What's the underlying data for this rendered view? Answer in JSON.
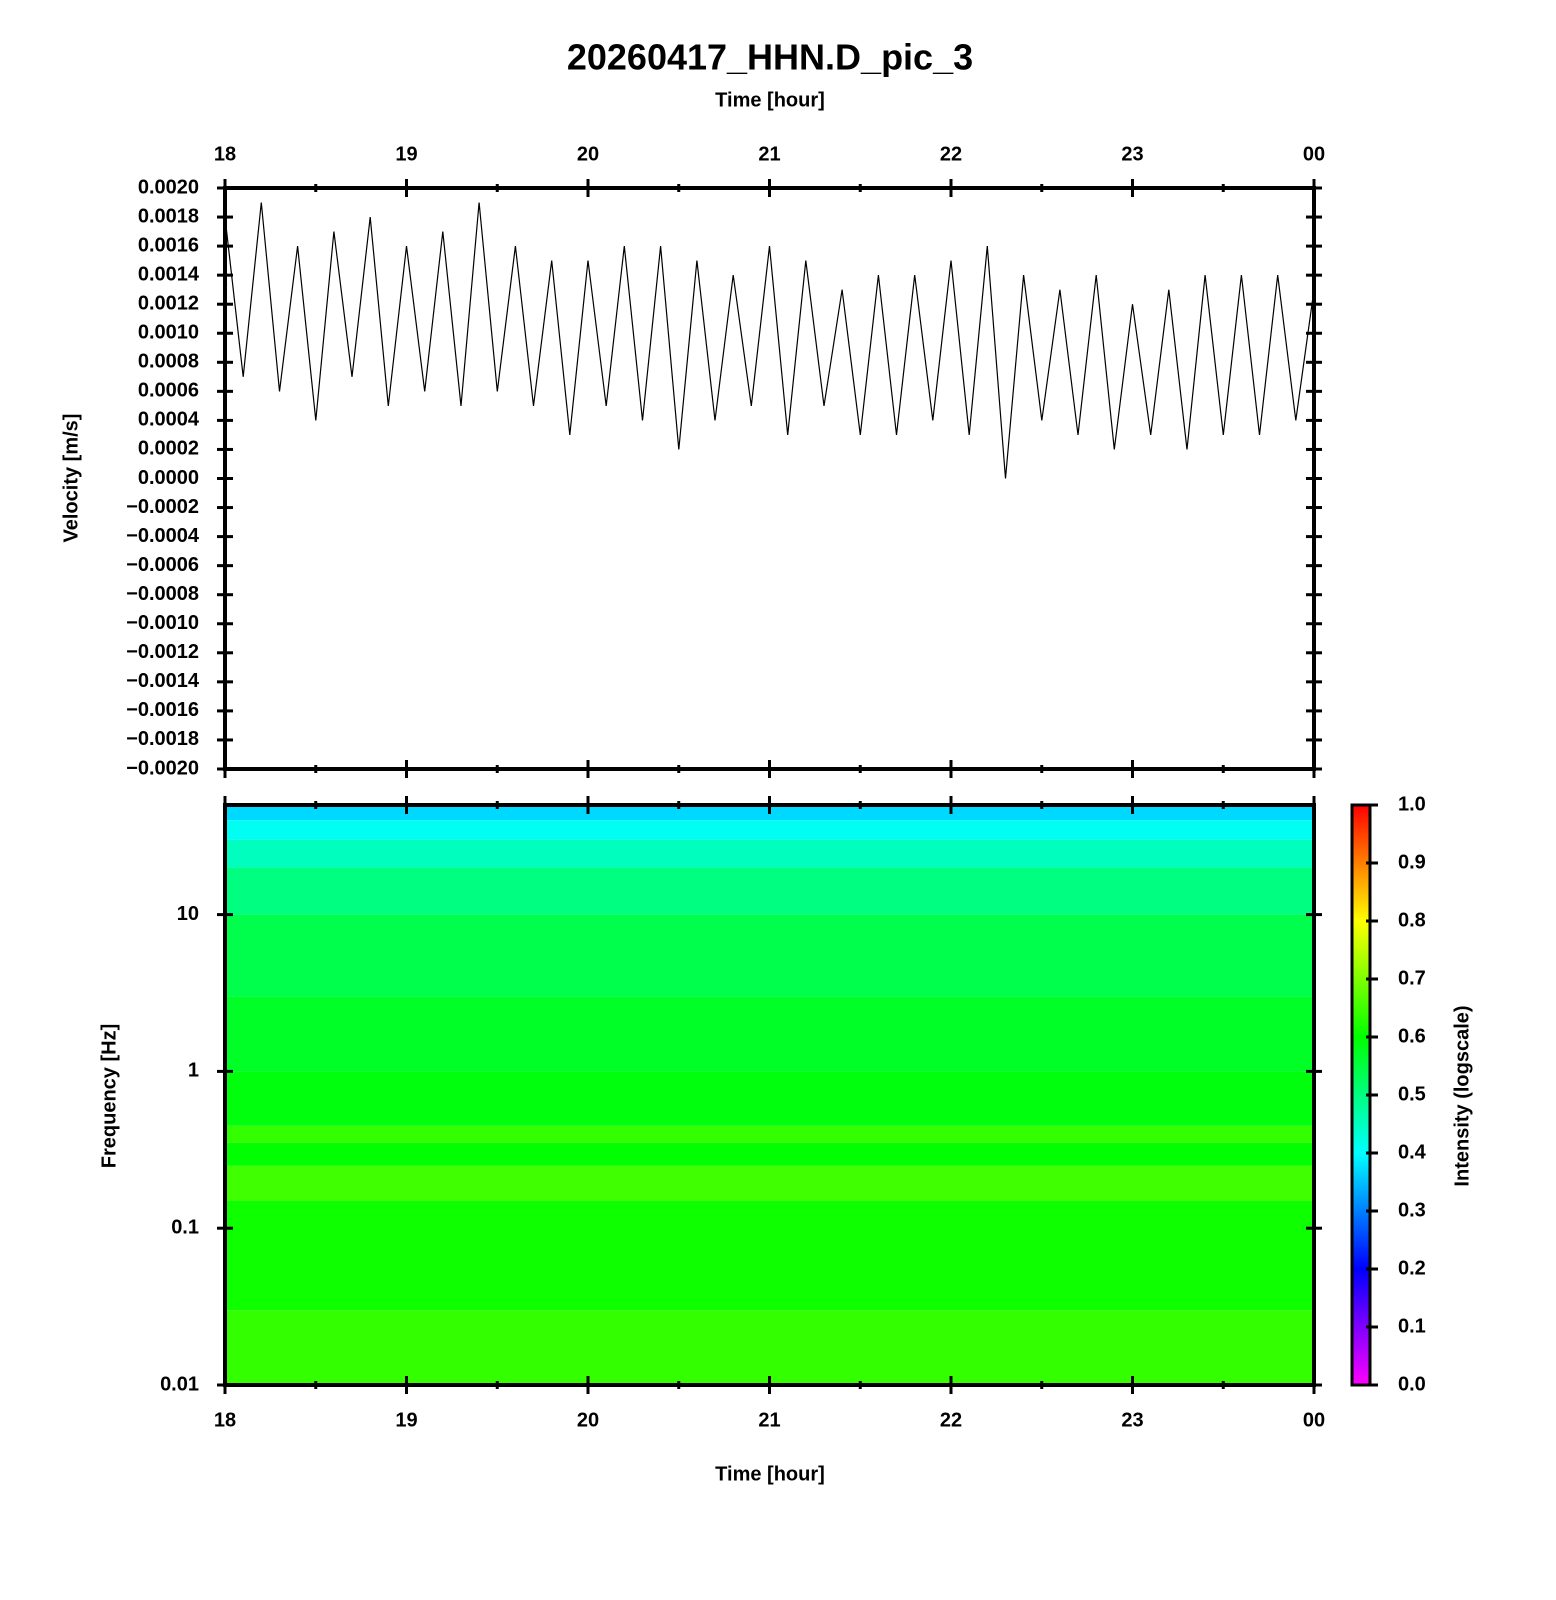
{
  "chart_data": [
    {
      "type": "line",
      "title": "20260417_HHN.D_pic_3",
      "xlabel": "Time [hour]",
      "ylabel": "Velocity [m/s]",
      "x": [
        18,
        18.1,
        18.2,
        18.3,
        18.4,
        18.5,
        18.6,
        18.7,
        18.8,
        18.9,
        19,
        19.1,
        19.2,
        19.3,
        19.4,
        19.5,
        19.6,
        19.7,
        19.8,
        19.9,
        20,
        20.1,
        20.2,
        20.3,
        20.4,
        20.5,
        20.6,
        20.7,
        20.8,
        20.9,
        21,
        21.1,
        21.2,
        21.3,
        21.4,
        21.5,
        21.6,
        21.7,
        21.8,
        21.9,
        22,
        22.1,
        22.2,
        22.3,
        22.4,
        22.5,
        22.6,
        22.7,
        22.8,
        22.9,
        23,
        23.1,
        23.2,
        23.3,
        23.4,
        23.5,
        23.6,
        23.7,
        23.8,
        23.9,
        24
      ],
      "series": [
        {
          "color": "#000000",
          "values": [
            0.0018,
            0.0007,
            0.0019,
            0.0006,
            0.0016,
            0.0004,
            0.0017,
            0.0007,
            0.0018,
            0.0005,
            0.0016,
            0.0006,
            0.0017,
            0.0005,
            0.0019,
            0.0006,
            0.0016,
            0.0005,
            0.0015,
            0.0003,
            0.0015,
            0.0005,
            0.0016,
            0.0004,
            0.0016,
            0.0002,
            0.0015,
            0.0004,
            0.0014,
            0.0005,
            0.0016,
            0.0003,
            0.0015,
            0.0005,
            0.0013,
            0.0003,
            0.0014,
            0.0003,
            0.0014,
            0.0004,
            0.0015,
            0.0003,
            0.0016,
            0.0,
            0.0014,
            0.0004,
            0.0013,
            0.0003,
            0.0014,
            0.0002,
            0.0012,
            0.0003,
            0.0013,
            0.0002,
            0.0014,
            0.0003,
            0.0014,
            0.0003,
            0.0014,
            0.0004,
            0.0013
          ]
        }
      ],
      "xlim": [
        18,
        24
      ],
      "xticks": [
        18,
        19,
        20,
        21,
        22,
        23,
        {
          "value": 24,
          "label": "00"
        }
      ],
      "xminorticks": [
        18.5,
        19.5,
        20.5,
        21.5,
        22.5,
        23.5
      ],
      "ylim": [
        -0.002,
        0.002
      ],
      "yticks": [
        {
          "value": 0.002,
          "label": "0.0020"
        },
        {
          "value": 0.0018,
          "label": "0.0018"
        },
        {
          "value": 0.0016,
          "label": "0.0016"
        },
        {
          "value": 0.0014,
          "label": "0.0014"
        },
        {
          "value": 0.0012,
          "label": "0.0012"
        },
        {
          "value": 0.001,
          "label": "0.0010"
        },
        {
          "value": 0.0008,
          "label": "0.0008"
        },
        {
          "value": 0.0006,
          "label": "0.0006"
        },
        {
          "value": 0.0004,
          "label": "0.0004"
        },
        {
          "value": 0.0002,
          "label": "0.0002"
        },
        {
          "value": 0,
          "label": "0.0000"
        },
        {
          "value": -0.0002,
          "label": "−0.0002"
        },
        {
          "value": -0.0004,
          "label": "−0.0004"
        },
        {
          "value": -0.0006,
          "label": "−0.0006"
        },
        {
          "value": -0.0008,
          "label": "−0.0008"
        },
        {
          "value": -0.001,
          "label": "−0.0010"
        },
        {
          "value": -0.0012,
          "label": "−0.0012"
        },
        {
          "value": -0.0014,
          "label": "−0.0014"
        },
        {
          "value": -0.0016,
          "label": "−0.0016"
        },
        {
          "value": -0.0018,
          "label": "−0.0018"
        },
        {
          "value": -0.002,
          "label": "−0.0020"
        }
      ]
    },
    {
      "type": "heatmap",
      "xlabel": "Time [hour]",
      "ylabel": "Frequency [Hz]",
      "colorbar_label": "Intensity (logscale)",
      "xlim": [
        18,
        24
      ],
      "xticks": [
        18,
        19,
        20,
        21,
        22,
        23,
        {
          "value": 24,
          "label": "00"
        }
      ],
      "xminorticks": [
        18.5,
        19.5,
        20.5,
        21.5,
        22.5,
        23.5
      ],
      "ylog": true,
      "ylim": [
        0.01,
        50
      ],
      "yticks": [
        0.01,
        0.1,
        1,
        10
      ],
      "frequency_bins": [
        0.01,
        0.03,
        0.15,
        0.25,
        0.35,
        0.45,
        1,
        3,
        10,
        20,
        30,
        40,
        50
      ],
      "intensity": [
        0.64,
        0.61,
        0.65,
        0.6,
        0.64,
        0.59,
        0.57,
        0.54,
        0.5,
        0.45,
        0.41,
        0.37
      ],
      "clim": [
        0,
        1
      ],
      "colorscale": [
        [
          0,
          "#ff00ff"
        ],
        [
          0.2,
          "#0000ff"
        ],
        [
          0.4,
          "#00ffff"
        ],
        [
          0.6,
          "#00ff00"
        ],
        [
          0.8,
          "#ffff00"
        ],
        [
          1,
          "#ff0000"
        ]
      ],
      "cticks": [
        {
          "value": 0,
          "label": "0.0"
        },
        0.1,
        0.2,
        0.3,
        0.4,
        0.5,
        0.6,
        0.7,
        0.8,
        0.9,
        {
          "value": 1,
          "label": "1.0"
        }
      ]
    }
  ]
}
